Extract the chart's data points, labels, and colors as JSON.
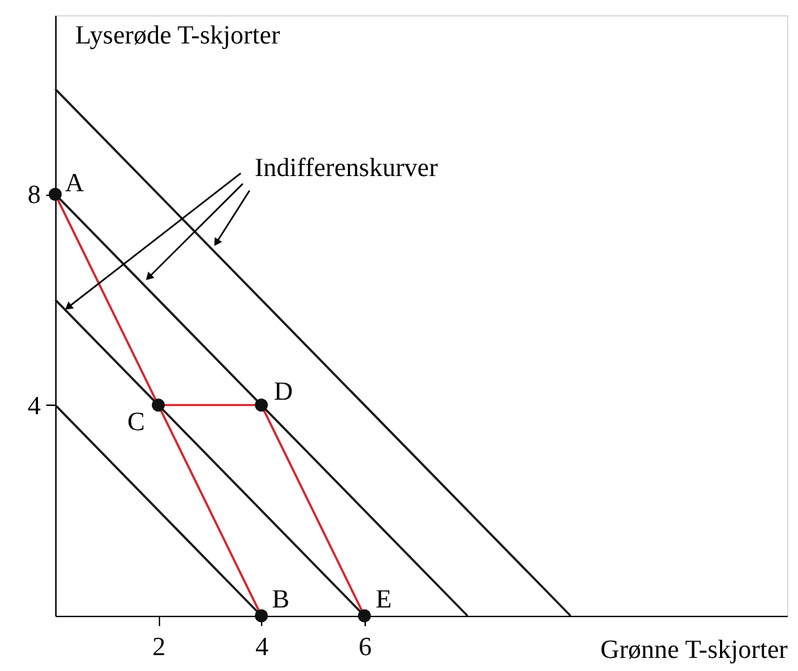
{
  "chart_data": {
    "type": "line",
    "xlabel": "Grønne T-skjorter",
    "ylabel": "Lyserøde T-skjorter",
    "annotations": [
      {
        "text": "Indifferenskurver",
        "x": 1.83,
        "y": 6.44
      }
    ],
    "xlim": [
      0,
      14.2
    ],
    "ylim": [
      0,
      11.4
    ],
    "xticks": [
      2,
      4,
      6
    ],
    "yticks": [
      4,
      8
    ],
    "grid": false,
    "marker": "none",
    "series": [
      {
        "color": "#1a1a1a",
        "x": [
          0,
          4
        ],
        "values": [
          4,
          0
        ]
      },
      {
        "color": "#1a1a1a",
        "x": [
          0,
          6
        ],
        "values": [
          6,
          0
        ]
      },
      {
        "color": "#1a1a1a",
        "x": [
          0,
          8
        ],
        "values": [
          8,
          0
        ]
      },
      {
        "color": "#1a1a1a",
        "x": [
          0,
          10
        ],
        "values": [
          10,
          0
        ]
      },
      {
        "color": "#d7262e",
        "x": [
          0,
          2,
          4
        ],
        "values": [
          8,
          4,
          0
        ]
      },
      {
        "color": "#d7262e",
        "x": [
          2,
          4,
          6
        ],
        "values": [
          4,
          4,
          0
        ]
      },
      {
        "type": "scatter",
        "marker": "circle",
        "color": "#111111",
        "x": [
          0,
          4,
          2,
          4,
          6
        ],
        "values": [
          8,
          0,
          4,
          4,
          0
        ],
        "value_labels": [
          "A",
          "B",
          "C",
          "D",
          "E"
        ]
      }
    ]
  }
}
